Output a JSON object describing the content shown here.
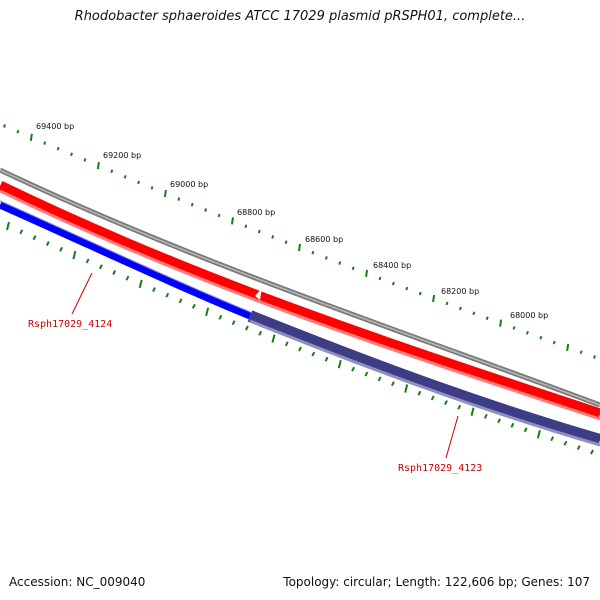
{
  "title": "Rhodobacter sphaeroides ATCC 17029 plasmid pRSPH01, complete...",
  "footer": {
    "accession": "Accession: NC_009040",
    "summary": "Topology: circular; Length: 122,606 bp; Genes: 107"
  },
  "scale": {
    "labels": [
      "69400 bp",
      "69200 bp",
      "69000 bp",
      "68800 bp",
      "68600 bp",
      "68400 bp",
      "68200 bp",
      "68000 bp"
    ]
  },
  "genes": [
    {
      "name": "Rsph17029_4124"
    },
    {
      "name": "Rsph17029_4123"
    }
  ],
  "colors": {
    "tick": "#1a7a1a",
    "backbone": "#808080",
    "forward_gene": "#ff0000",
    "reverse_gene": "#0000ff",
    "reverse_gene_2": "#3d3d85",
    "label": "#cc0000"
  }
}
